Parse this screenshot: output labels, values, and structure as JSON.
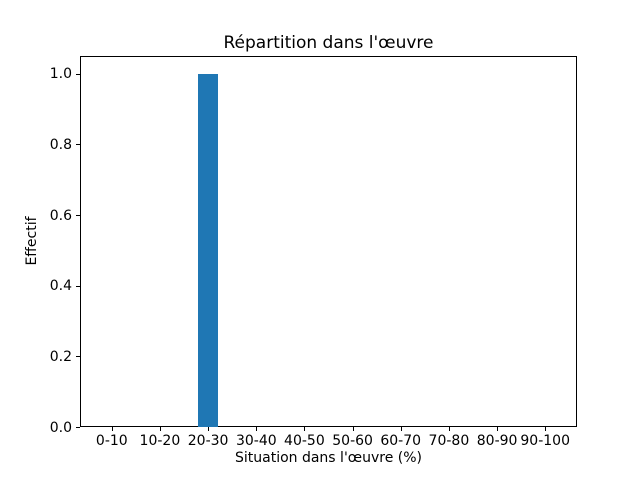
{
  "chart_data": {
    "type": "bar",
    "title": "Répartition dans l'œuvre",
    "xlabel": "Situation dans l'œuvre (%)",
    "ylabel": "Effectif",
    "categories": [
      "0-10",
      "10-20",
      "20-30",
      "30-40",
      "40-50",
      "50-60",
      "60-70",
      "70-80",
      "80-90",
      "90-100"
    ],
    "values": [
      0,
      0,
      1,
      0,
      0,
      0,
      0,
      0,
      0,
      0
    ],
    "ytick_values": [
      0.0,
      0.2,
      0.4,
      0.6,
      0.8,
      1.0
    ],
    "ytick_labels": [
      "0.0",
      "0.2",
      "0.4",
      "0.6",
      "0.8",
      "1.0"
    ],
    "ylim": [
      0,
      1.05
    ],
    "xlim": [
      -0.66,
      9.66
    ],
    "bar_width": 0.43,
    "bar_color": "#1f77b4",
    "axis_color": "#000000",
    "background_color": "#ffffff",
    "grid": false,
    "legend": null
  }
}
